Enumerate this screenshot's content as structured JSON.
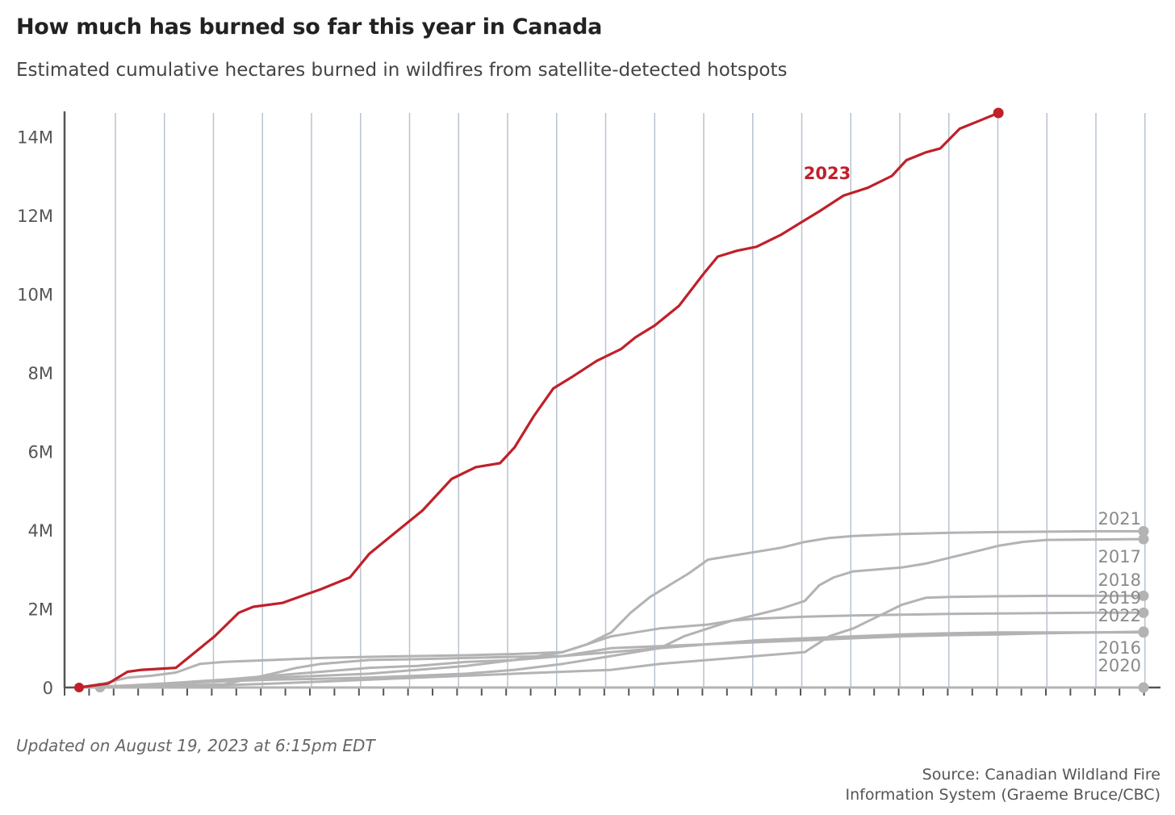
{
  "header": {
    "title": "How much has burned so far this year in Canada",
    "subtitle": "Estimated cumulative hectares burned in wildfires from satellite-detected hotspots"
  },
  "footer": {
    "updated": "Updated on August 19, 2023 at 6:15pm EDT",
    "source_line1": "Source: Canadian Wildland Fire",
    "source_line2": "Information System (Graeme Bruce/CBC)"
  },
  "chart_data": {
    "type": "line",
    "title": "How much has burned so far this year in Canada",
    "subtitle": "Estimated cumulative hectares burned in wildfires from satellite-detected hotspots",
    "xlabel": "",
    "ylabel": "",
    "x_unit": "week index",
    "xlim": [
      0,
      22
    ],
    "ylim": [
      0,
      14600000
    ],
    "grid": "vertical",
    "yticks": [
      {
        "value": 0,
        "label": "0"
      },
      {
        "value": 2000000,
        "label": "2M"
      },
      {
        "value": 4000000,
        "label": "4M"
      },
      {
        "value": 6000000,
        "label": "6M"
      },
      {
        "value": 8000000,
        "label": "8M"
      },
      {
        "value": 10000000,
        "label": "10M"
      },
      {
        "value": 12000000,
        "label": "12M"
      },
      {
        "value": 14000000,
        "label": "14M"
      }
    ],
    "colors": {
      "highlight": "#c0202a",
      "other": "#b3b3b3",
      "grid": "#b8c3cf",
      "axis": "#555555"
    },
    "series": [
      {
        "name": "2023",
        "highlight": true,
        "label_position": "below",
        "points": [
          [
            0.0,
            0
          ],
          [
            0.6,
            100000
          ],
          [
            1.0,
            400000
          ],
          [
            1.3,
            450000
          ],
          [
            2.0,
            500000
          ],
          [
            2.5,
            1000000
          ],
          [
            2.8,
            1300000
          ],
          [
            3.3,
            1900000
          ],
          [
            3.6,
            2050000
          ],
          [
            4.2,
            2150000
          ],
          [
            5.0,
            2500000
          ],
          [
            5.6,
            2800000
          ],
          [
            6.0,
            3400000
          ],
          [
            6.5,
            3900000
          ],
          [
            7.1,
            4500000
          ],
          [
            7.7,
            5300000
          ],
          [
            8.2,
            5600000
          ],
          [
            8.7,
            5700000
          ],
          [
            9.0,
            6100000
          ],
          [
            9.4,
            6900000
          ],
          [
            9.8,
            7600000
          ],
          [
            10.2,
            7900000
          ],
          [
            10.7,
            8300000
          ],
          [
            11.2,
            8600000
          ],
          [
            11.5,
            8900000
          ],
          [
            11.9,
            9200000
          ],
          [
            12.4,
            9700000
          ],
          [
            12.9,
            10500000
          ],
          [
            13.2,
            10950000
          ],
          [
            13.6,
            11100000
          ],
          [
            14.0,
            11200000
          ],
          [
            14.5,
            11500000
          ],
          [
            14.9,
            11800000
          ],
          [
            15.3,
            12100000
          ],
          [
            15.8,
            12500000
          ],
          [
            16.3,
            12700000
          ],
          [
            16.8,
            13000000
          ],
          [
            17.1,
            13400000
          ],
          [
            17.5,
            13600000
          ],
          [
            17.8,
            13700000
          ],
          [
            18.2,
            14200000
          ],
          [
            18.6,
            14400000
          ],
          [
            19.0,
            14600000
          ]
        ]
      },
      {
        "name": "2021",
        "highlight": false,
        "label_position": "above",
        "points": [
          [
            0,
            0
          ],
          [
            1,
            50000
          ],
          [
            2,
            120000
          ],
          [
            3,
            200000
          ],
          [
            4,
            250000
          ],
          [
            5,
            300000
          ],
          [
            6,
            350000
          ],
          [
            7,
            450000
          ],
          [
            8,
            550000
          ],
          [
            9,
            700000
          ],
          [
            10,
            900000
          ],
          [
            10.5,
            1100000
          ],
          [
            11,
            1400000
          ],
          [
            11.4,
            1900000
          ],
          [
            11.8,
            2300000
          ],
          [
            12.2,
            2600000
          ],
          [
            12.6,
            2900000
          ],
          [
            13,
            3250000
          ],
          [
            13.5,
            3350000
          ],
          [
            14,
            3450000
          ],
          [
            14.5,
            3550000
          ],
          [
            15,
            3700000
          ],
          [
            15.5,
            3800000
          ],
          [
            16,
            3850000
          ],
          [
            17,
            3900000
          ],
          [
            18,
            3930000
          ],
          [
            19,
            3950000
          ],
          [
            20,
            3960000
          ],
          [
            21,
            3970000
          ],
          [
            22,
            3970000
          ]
        ]
      },
      {
        "name": "2017",
        "highlight": false,
        "label_position": "below",
        "points": [
          [
            0,
            0
          ],
          [
            1,
            40000
          ],
          [
            2,
            100000
          ],
          [
            3,
            160000
          ],
          [
            4,
            200000
          ],
          [
            5,
            220000
          ],
          [
            6,
            250000
          ],
          [
            7,
            300000
          ],
          [
            8,
            350000
          ],
          [
            9,
            450000
          ],
          [
            10,
            600000
          ],
          [
            11,
            800000
          ],
          [
            12,
            1000000
          ],
          [
            12.5,
            1300000
          ],
          [
            13,
            1500000
          ],
          [
            13.5,
            1700000
          ],
          [
            14,
            1850000
          ],
          [
            14.5,
            2000000
          ],
          [
            15,
            2200000
          ],
          [
            15.3,
            2600000
          ],
          [
            15.6,
            2800000
          ],
          [
            16,
            2950000
          ],
          [
            17,
            3050000
          ],
          [
            17.5,
            3150000
          ],
          [
            18,
            3300000
          ],
          [
            18.5,
            3450000
          ],
          [
            19,
            3600000
          ],
          [
            19.5,
            3700000
          ],
          [
            20,
            3750000
          ],
          [
            21,
            3760000
          ],
          [
            22,
            3770000
          ]
        ]
      },
      {
        "name": "2018",
        "highlight": false,
        "label_position": "above",
        "points": [
          [
            0,
            0
          ],
          [
            2,
            20000
          ],
          [
            3,
            60000
          ],
          [
            4,
            100000
          ],
          [
            5,
            150000
          ],
          [
            6,
            200000
          ],
          [
            7,
            250000
          ],
          [
            8,
            300000
          ],
          [
            9,
            350000
          ],
          [
            10,
            400000
          ],
          [
            11,
            450000
          ],
          [
            12,
            600000
          ],
          [
            13,
            700000
          ],
          [
            14,
            800000
          ],
          [
            15,
            900000
          ],
          [
            15.5,
            1300000
          ],
          [
            16,
            1500000
          ],
          [
            16.5,
            1800000
          ],
          [
            17,
            2100000
          ],
          [
            17.5,
            2280000
          ],
          [
            18,
            2300000
          ],
          [
            19,
            2320000
          ],
          [
            20,
            2330000
          ],
          [
            21,
            2330000
          ],
          [
            22,
            2330000
          ]
        ]
      },
      {
        "name": "2019",
        "highlight": false,
        "label_position": "below",
        "points": [
          [
            0,
            0
          ],
          [
            2,
            100000
          ],
          [
            3,
            200000
          ],
          [
            4,
            300000
          ],
          [
            5,
            400000
          ],
          [
            6,
            500000
          ],
          [
            7,
            550000
          ],
          [
            8,
            650000
          ],
          [
            9,
            700000
          ],
          [
            10,
            800000
          ],
          [
            11,
            900000
          ],
          [
            12,
            1000000
          ],
          [
            13,
            1100000
          ],
          [
            14,
            1200000
          ],
          [
            15,
            1250000
          ],
          [
            16,
            1300000
          ],
          [
            17,
            1350000
          ],
          [
            18,
            1380000
          ],
          [
            19,
            1400000
          ],
          [
            20,
            1400000
          ],
          [
            21,
            1400000
          ],
          [
            22,
            1400000
          ]
        ]
      },
      {
        "name": "2022",
        "highlight": false,
        "label_position": "below",
        "points": [
          [
            0,
            0
          ],
          [
            0.5,
            100000
          ],
          [
            1,
            250000
          ],
          [
            1.5,
            300000
          ],
          [
            2,
            380000
          ],
          [
            2.5,
            600000
          ],
          [
            3,
            650000
          ],
          [
            4,
            700000
          ],
          [
            5,
            750000
          ],
          [
            6,
            780000
          ],
          [
            7,
            800000
          ],
          [
            8,
            820000
          ],
          [
            9,
            850000
          ],
          [
            10,
            900000
          ],
          [
            10.5,
            1100000
          ],
          [
            11,
            1300000
          ],
          [
            11.5,
            1400000
          ],
          [
            12,
            1500000
          ],
          [
            12.5,
            1550000
          ],
          [
            13,
            1600000
          ],
          [
            13.5,
            1700000
          ],
          [
            14,
            1750000
          ],
          [
            15,
            1800000
          ],
          [
            16,
            1830000
          ],
          [
            17,
            1850000
          ],
          [
            18,
            1870000
          ],
          [
            19,
            1880000
          ],
          [
            20,
            1890000
          ],
          [
            21,
            1900000
          ],
          [
            22,
            1900000
          ]
        ]
      },
      {
        "name": "2016",
        "highlight": false,
        "label_position": "below",
        "points": [
          [
            0,
            0
          ],
          [
            3,
            80000
          ],
          [
            4,
            350000
          ],
          [
            4.5,
            500000
          ],
          [
            5,
            600000
          ],
          [
            6,
            700000
          ],
          [
            7,
            720000
          ],
          [
            8,
            750000
          ],
          [
            9,
            780000
          ],
          [
            10,
            800000
          ],
          [
            10.5,
            900000
          ],
          [
            11,
            1000000
          ],
          [
            12,
            1050000
          ],
          [
            13,
            1100000
          ],
          [
            14,
            1150000
          ],
          [
            15,
            1200000
          ],
          [
            16,
            1250000
          ],
          [
            17,
            1300000
          ],
          [
            18,
            1330000
          ],
          [
            19,
            1350000
          ],
          [
            20,
            1380000
          ],
          [
            21,
            1400000
          ],
          [
            22,
            1420000
          ]
        ]
      },
      {
        "name": "2020",
        "highlight": false,
        "label_position": "below",
        "points": [
          [
            0,
            0
          ],
          [
            22,
            0
          ]
        ]
      }
    ]
  }
}
